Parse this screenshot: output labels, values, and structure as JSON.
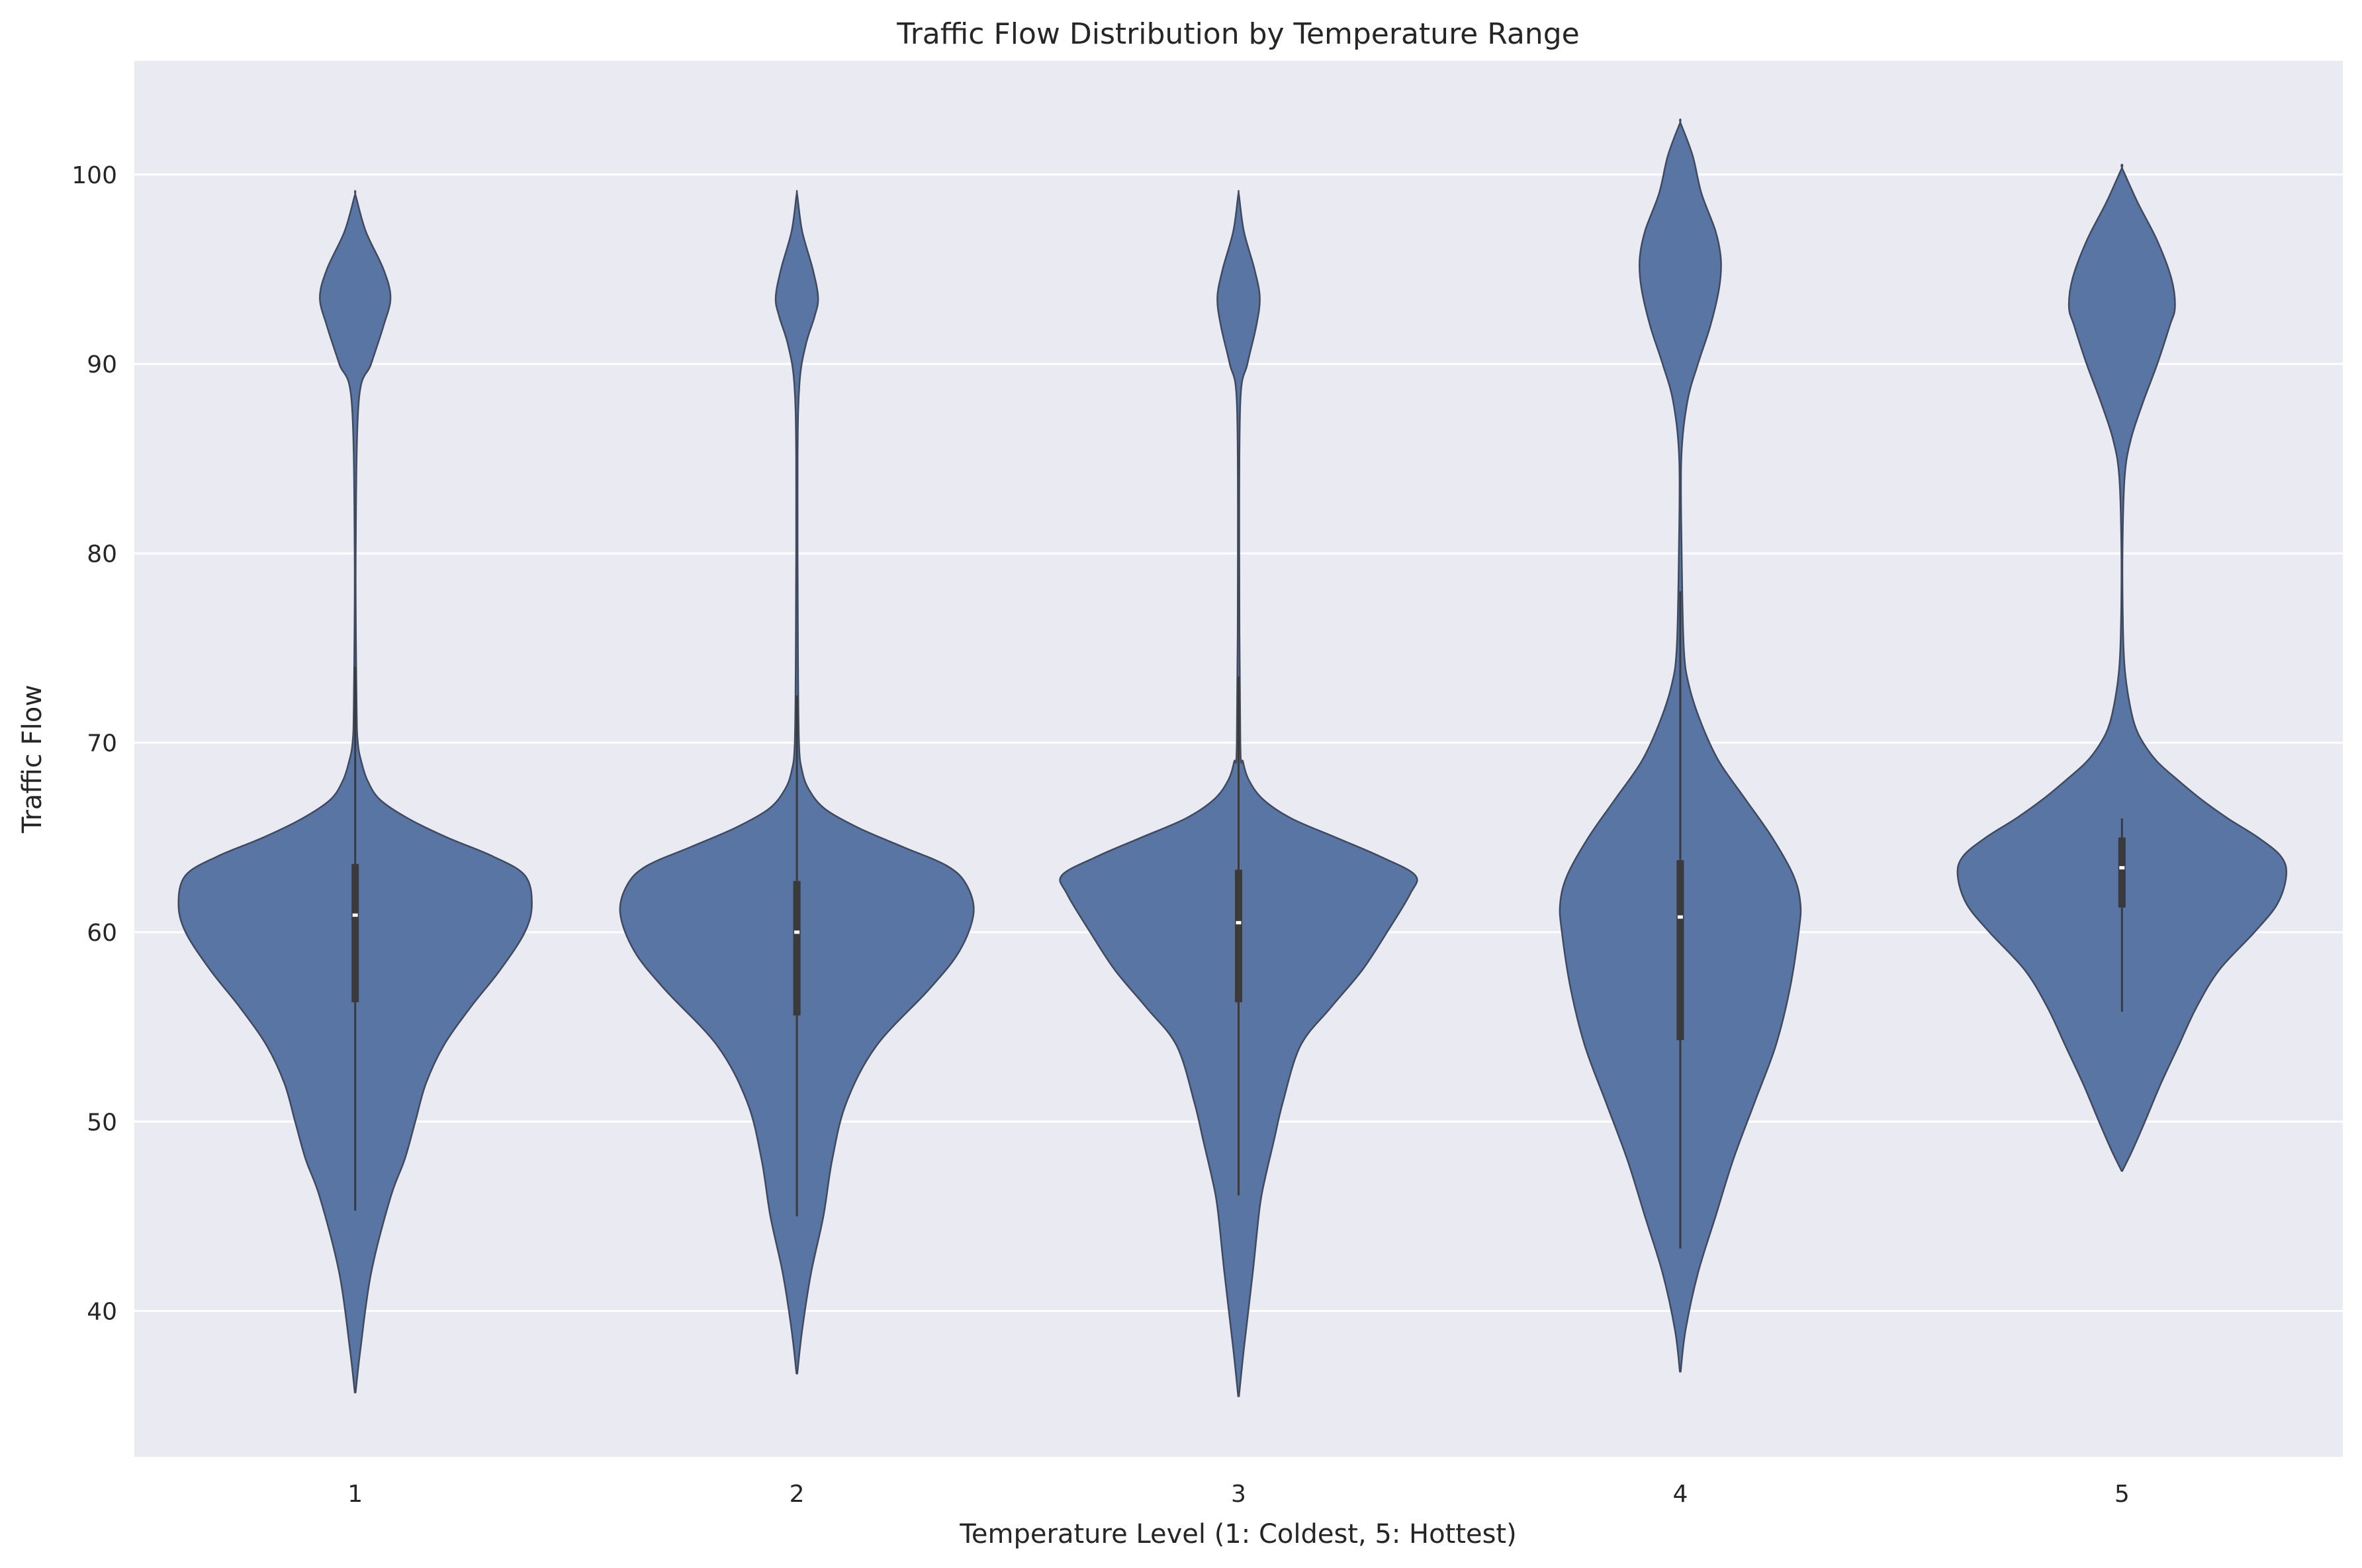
{
  "chart_data": {
    "type": "violin",
    "title": "Traffic Flow Distribution by Temperature Range",
    "xlabel": "Temperature Level (1: Coldest, 5: Hottest)",
    "ylabel": "Traffic Flow",
    "categories": [
      "1",
      "2",
      "3",
      "4",
      "5"
    ],
    "ylim": [
      32.3,
      106.0
    ],
    "yticks": [
      40,
      50,
      60,
      70,
      80,
      90,
      100
    ],
    "grid": true,
    "colors": {
      "fill": "#5975a4",
      "edge": "#3f4a5e",
      "box": "#3a3a3a",
      "background": "#eaeaf2",
      "grid": "#ffffff"
    },
    "series": [
      {
        "category": "1",
        "min": 35.7,
        "max": 98.9,
        "q1": 56.3,
        "median": 60.9,
        "q3": 63.6,
        "whisker_low": 45.3,
        "whisker_high": 74.0,
        "density": [
          [
            35.7,
            0.0
          ],
          [
            38.0,
            0.03
          ],
          [
            42.0,
            0.09
          ],
          [
            46.0,
            0.2
          ],
          [
            48.0,
            0.28
          ],
          [
            50.0,
            0.34
          ],
          [
            52.0,
            0.4
          ],
          [
            54.0,
            0.5
          ],
          [
            56.0,
            0.65
          ],
          [
            58.0,
            0.82
          ],
          [
            60.0,
            0.96
          ],
          [
            61.5,
            1.0
          ],
          [
            63.0,
            0.96
          ],
          [
            64.0,
            0.78
          ],
          [
            65.0,
            0.52
          ],
          [
            66.0,
            0.3
          ],
          [
            67.0,
            0.14
          ],
          [
            68.0,
            0.07
          ],
          [
            69.0,
            0.035
          ],
          [
            70.0,
            0.015
          ],
          [
            72.0,
            0.008
          ],
          [
            80.0,
            0.003
          ],
          [
            88.0,
            0.02
          ],
          [
            90.0,
            0.09
          ],
          [
            92.0,
            0.16
          ],
          [
            93.5,
            0.2
          ],
          [
            95.0,
            0.16
          ],
          [
            97.0,
            0.06
          ],
          [
            98.9,
            0.0
          ]
        ]
      },
      {
        "category": "2",
        "min": 36.7,
        "max": 98.9,
        "q1": 55.6,
        "median": 60.0,
        "q3": 62.7,
        "whisker_low": 45.0,
        "whisker_high": 72.5,
        "density": [
          [
            36.7,
            0.0
          ],
          [
            39.0,
            0.03
          ],
          [
            42.0,
            0.08
          ],
          [
            45.0,
            0.15
          ],
          [
            48.0,
            0.2
          ],
          [
            51.0,
            0.28
          ],
          [
            54.0,
            0.45
          ],
          [
            57.0,
            0.75
          ],
          [
            59.0,
            0.92
          ],
          [
            61.0,
            1.0
          ],
          [
            62.5,
            0.96
          ],
          [
            63.5,
            0.85
          ],
          [
            64.5,
            0.6
          ],
          [
            65.5,
            0.35
          ],
          [
            66.5,
            0.16
          ],
          [
            67.5,
            0.07
          ],
          [
            68.5,
            0.03
          ],
          [
            70.0,
            0.012
          ],
          [
            75.0,
            0.006
          ],
          [
            85.0,
            0.004
          ],
          [
            89.0,
            0.015
          ],
          [
            91.0,
            0.05
          ],
          [
            92.5,
            0.1
          ],
          [
            93.5,
            0.12
          ],
          [
            95.0,
            0.09
          ],
          [
            97.0,
            0.03
          ],
          [
            98.9,
            0.0
          ]
        ]
      },
      {
        "category": "3",
        "min": 35.5,
        "max": 98.9,
        "q1": 56.3,
        "median": 60.5,
        "q3": 63.3,
        "whisker_low": 46.1,
        "whisker_high": 73.5,
        "density": [
          [
            35.5,
            0.0
          ],
          [
            38.0,
            0.03
          ],
          [
            42.0,
            0.08
          ],
          [
            45.5,
            0.12
          ],
          [
            47.0,
            0.15
          ],
          [
            49.0,
            0.2
          ],
          [
            51.0,
            0.25
          ],
          [
            54.0,
            0.35
          ],
          [
            56.0,
            0.52
          ],
          [
            58.0,
            0.7
          ],
          [
            60.0,
            0.84
          ],
          [
            62.0,
            0.97
          ],
          [
            63.0,
            1.0
          ],
          [
            64.0,
            0.8
          ],
          [
            65.0,
            0.55
          ],
          [
            66.0,
            0.3
          ],
          [
            67.0,
            0.14
          ],
          [
            68.0,
            0.06
          ],
          [
            69.0,
            0.025
          ],
          [
            70.0,
            0.01
          ],
          [
            80.0,
            0.004
          ],
          [
            88.0,
            0.01
          ],
          [
            90.0,
            0.05
          ],
          [
            92.0,
            0.1
          ],
          [
            93.5,
            0.12
          ],
          [
            95.0,
            0.09
          ],
          [
            97.0,
            0.03
          ],
          [
            98.9,
            0.0
          ]
        ]
      },
      {
        "category": "4",
        "min": 36.8,
        "max": 102.7,
        "q1": 54.3,
        "median": 60.8,
        "q3": 63.8,
        "whisker_low": 43.3,
        "whisker_high": 78.0,
        "density": [
          [
            36.8,
            0.0
          ],
          [
            39.0,
            0.03
          ],
          [
            42.0,
            0.1
          ],
          [
            45.0,
            0.2
          ],
          [
            48.0,
            0.3
          ],
          [
            51.0,
            0.42
          ],
          [
            54.0,
            0.54
          ],
          [
            57.0,
            0.62
          ],
          [
            60.0,
            0.67
          ],
          [
            61.5,
            0.68
          ],
          [
            63.0,
            0.64
          ],
          [
            65.0,
            0.52
          ],
          [
            67.0,
            0.37
          ],
          [
            69.0,
            0.22
          ],
          [
            71.0,
            0.12
          ],
          [
            73.0,
            0.05
          ],
          [
            75.0,
            0.02
          ],
          [
            80.0,
            0.008
          ],
          [
            85.0,
            0.006
          ],
          [
            88.0,
            0.04
          ],
          [
            90.0,
            0.1
          ],
          [
            92.0,
            0.17
          ],
          [
            94.0,
            0.22
          ],
          [
            95.5,
            0.23
          ],
          [
            97.0,
            0.2
          ],
          [
            99.0,
            0.12
          ],
          [
            101.0,
            0.07
          ],
          [
            102.7,
            0.0
          ]
        ]
      },
      {
        "category": "5",
        "min": 47.4,
        "max": 100.3,
        "q1": 61.3,
        "median": 63.4,
        "q3": 65.0,
        "whisker_low": 55.8,
        "whisker_high": 66.0,
        "density": [
          [
            47.4,
            0.0
          ],
          [
            48.5,
            0.06
          ],
          [
            50.0,
            0.13
          ],
          [
            52.0,
            0.22
          ],
          [
            54.0,
            0.32
          ],
          [
            56.0,
            0.42
          ],
          [
            58.0,
            0.55
          ],
          [
            60.0,
            0.75
          ],
          [
            61.5,
            0.88
          ],
          [
            63.0,
            0.93
          ],
          [
            64.0,
            0.9
          ],
          [
            65.0,
            0.77
          ],
          [
            66.0,
            0.6
          ],
          [
            67.0,
            0.45
          ],
          [
            68.0,
            0.32
          ],
          [
            69.0,
            0.2
          ],
          [
            70.0,
            0.12
          ],
          [
            71.0,
            0.07
          ],
          [
            72.5,
            0.035
          ],
          [
            74.0,
            0.015
          ],
          [
            76.0,
            0.006
          ],
          [
            80.0,
            0.003
          ],
          [
            84.0,
            0.015
          ],
          [
            86.0,
            0.05
          ],
          [
            88.0,
            0.12
          ],
          [
            90.0,
            0.2
          ],
          [
            92.0,
            0.27
          ],
          [
            93.0,
            0.3
          ],
          [
            94.5,
            0.28
          ],
          [
            96.5,
            0.2
          ],
          [
            98.5,
            0.09
          ],
          [
            100.3,
            0.0
          ]
        ]
      }
    ]
  }
}
